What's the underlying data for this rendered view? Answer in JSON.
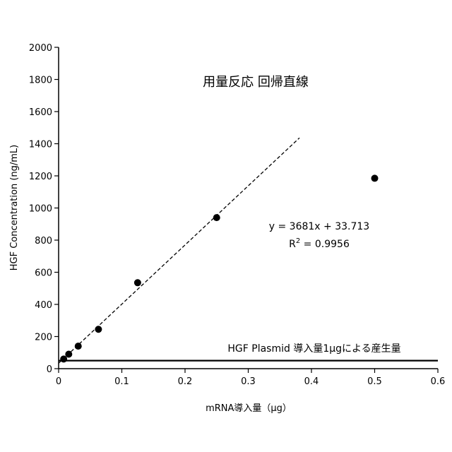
{
  "chart_data": {
    "type": "scatter",
    "title": "用量反応 回帰直線",
    "xlabel": "mRNA導入量（μg）",
    "ylabel": "HGF Concentration (ng/mL)",
    "xlim": [
      0,
      0.6
    ],
    "ylim": [
      0,
      2000
    ],
    "x_ticks": [
      0,
      0.1,
      0.2,
      0.3,
      0.4,
      0.5,
      0.6
    ],
    "x_tick_labels": [
      "0",
      "0.1",
      "0.2",
      "0.3",
      "0.4",
      "0.5",
      "0.6"
    ],
    "y_ticks": [
      0,
      200,
      400,
      600,
      800,
      1000,
      1200,
      1400,
      1600,
      1800,
      2000
    ],
    "y_tick_labels": [
      "0",
      "200",
      "400",
      "600",
      "800",
      "1000",
      "1200",
      "1400",
      "1600",
      "1800",
      "2000"
    ],
    "grid": false,
    "points": [
      {
        "x": 0.008,
        "y": 60
      },
      {
        "x": 0.016,
        "y": 90
      },
      {
        "x": 0.031,
        "y": 140
      },
      {
        "x": 0.063,
        "y": 245
      },
      {
        "x": 0.125,
        "y": 535
      },
      {
        "x": 0.25,
        "y": 940
      },
      {
        "x": 0.5,
        "y": 1185
      }
    ],
    "regression": {
      "slope": 3681,
      "intercept": 33.713,
      "x_range": [
        0,
        0.381
      ],
      "style": "dashed",
      "equation": "y = 3681x + 33.713",
      "r2_prefix": "R",
      "r2_sup": "2",
      "r2_value": " = 0.9956"
    },
    "reference_line": {
      "y": 50,
      "label": "HGF Plasmid 導入量1μgによる産生量"
    },
    "colors": {
      "points": "#000000",
      "lines": "#000000",
      "axes": "#000000"
    }
  }
}
